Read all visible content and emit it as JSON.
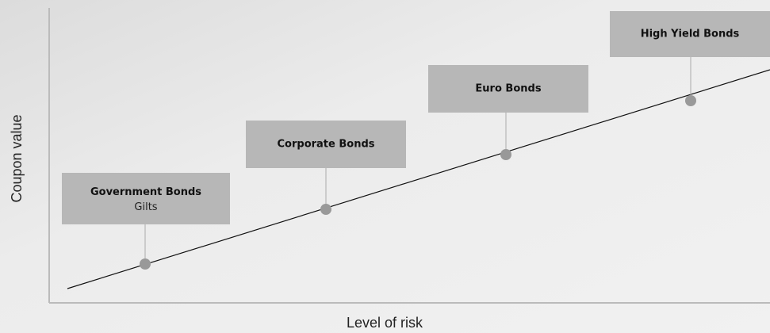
{
  "axes": {
    "y_label": "Coupon value",
    "x_label": "Level of risk"
  },
  "nodes": [
    {
      "label": "Government Bonds",
      "sublabel": "Gilts"
    },
    {
      "label": "Corporate Bonds"
    },
    {
      "label": "Euro Bonds"
    },
    {
      "label": "High Yield Bonds"
    }
  ]
}
